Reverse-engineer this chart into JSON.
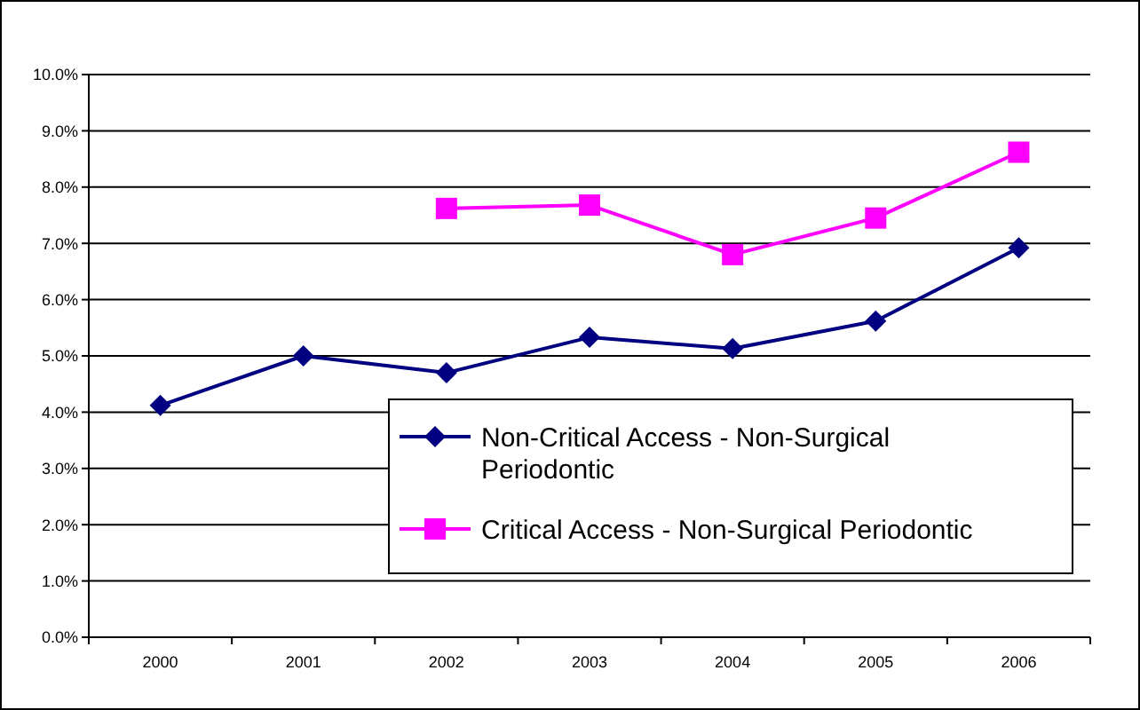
{
  "chart_data": {
    "type": "line",
    "categories": [
      "2000",
      "2001",
      "2002",
      "2003",
      "2004",
      "2005",
      "2006"
    ],
    "series": [
      {
        "name": "Non-Critical Access - Non-Surgical Periodontic",
        "color": "#000080",
        "marker": "diamond",
        "values": [
          4.12,
          5.0,
          4.7,
          5.33,
          5.13,
          5.62,
          6.92
        ]
      },
      {
        "name": "Critical Access - Non-Surgical Periodontic",
        "color": "#ff00ff",
        "marker": "square",
        "values": [
          null,
          null,
          7.62,
          7.68,
          6.8,
          7.45,
          8.62
        ]
      }
    ],
    "ylim": [
      0,
      10
    ],
    "yticks": [
      {
        "value": 0,
        "label": "0.0%"
      },
      {
        "value": 1,
        "label": "1.0%"
      },
      {
        "value": 2,
        "label": "2.0%"
      },
      {
        "value": 3,
        "label": "3.0%"
      },
      {
        "value": 4,
        "label": "4.0%"
      },
      {
        "value": 5,
        "label": "5.0%"
      },
      {
        "value": 6,
        "label": "6.0%"
      },
      {
        "value": 7,
        "label": "7.0%"
      },
      {
        "value": 8,
        "label": "8.0%"
      },
      {
        "value": 9,
        "label": "9.0%"
      },
      {
        "value": 10,
        "label": "10.0%"
      }
    ],
    "grid": "y",
    "legend": "bottom right",
    "line_style": "solid"
  }
}
